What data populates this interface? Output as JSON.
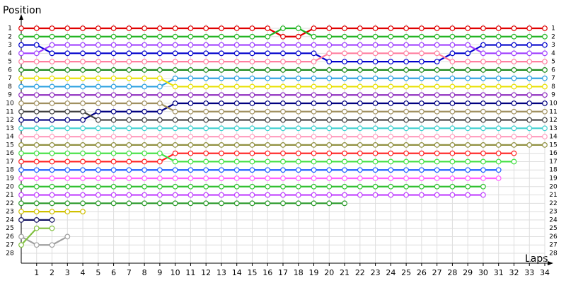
{
  "chart_data": {
    "type": "line",
    "title": "Position",
    "x_label": "Laps",
    "x": [
      0,
      1,
      2,
      3,
      4,
      5,
      6,
      7,
      8,
      9,
      10,
      11,
      12,
      13,
      14,
      15,
      16,
      17,
      18,
      19,
      20,
      21,
      22,
      23,
      24,
      25,
      26,
      27,
      28,
      29,
      30,
      31,
      32,
      33,
      34
    ],
    "xlim": [
      0,
      34
    ],
    "xticks": [
      1,
      2,
      3,
      4,
      5,
      6,
      7,
      8,
      9,
      10,
      11,
      12,
      13,
      14,
      15,
      16,
      17,
      18,
      19,
      20,
      21,
      22,
      23,
      24,
      25,
      26,
      27,
      28,
      29,
      30,
      31,
      32,
      33,
      34
    ],
    "ylim": [
      1,
      28
    ],
    "yticks": [
      1,
      2,
      3,
      4,
      5,
      6,
      7,
      8,
      9,
      10,
      11,
      12,
      13,
      14,
      15,
      16,
      17,
      18,
      19,
      20,
      21,
      22,
      23,
      24,
      25,
      26,
      27,
      28
    ],
    "y_reversed": true,
    "grid": true,
    "series": [
      {
        "color": "#e00000",
        "values": [
          1,
          1,
          1,
          1,
          1,
          1,
          1,
          1,
          1,
          1,
          1,
          1,
          1,
          1,
          1,
          1,
          1,
          2,
          2,
          1,
          1,
          1,
          1,
          1,
          1,
          1,
          1,
          1,
          1,
          1,
          1,
          1,
          1,
          1,
          1
        ]
      },
      {
        "color": "#22b422",
        "values": [
          2,
          2,
          2,
          2,
          2,
          2,
          2,
          2,
          2,
          2,
          2,
          2,
          2,
          2,
          2,
          2,
          2,
          1,
          1,
          2,
          2,
          2,
          2,
          2,
          2,
          2,
          2,
          2,
          2,
          2,
          2,
          2,
          2,
          2,
          2
        ]
      },
      {
        "color": "#0000cc",
        "values": [
          3,
          3,
          4,
          4,
          4,
          4,
          4,
          4,
          4,
          4,
          4,
          4,
          4,
          4,
          4,
          4,
          4,
          4,
          4,
          4,
          5,
          5,
          5,
          5,
          5,
          5,
          5,
          5,
          4,
          4,
          3,
          3,
          3,
          3,
          3
        ]
      },
      {
        "color": "#a040ff",
        "values": [
          4,
          4,
          3,
          3,
          3,
          3,
          3,
          3,
          3,
          3,
          3,
          3,
          3,
          3,
          3,
          3,
          3,
          3,
          3,
          3,
          3,
          3,
          3,
          3,
          3,
          3,
          3,
          3,
          3,
          3,
          4,
          4,
          4,
          4,
          4
        ]
      },
      {
        "color": "#ff80a0",
        "values": [
          5,
          5,
          5,
          5,
          5,
          5,
          5,
          5,
          5,
          5,
          5,
          5,
          5,
          5,
          5,
          5,
          5,
          5,
          5,
          5,
          4,
          4,
          4,
          4,
          4,
          4,
          4,
          4,
          5,
          5,
          5,
          5,
          5,
          5,
          5
        ]
      },
      {
        "color": "#1a8a1a",
        "values": [
          6,
          6,
          6,
          6,
          6,
          6,
          6,
          6,
          6,
          6,
          6,
          6,
          6,
          6,
          6,
          6,
          6,
          6,
          6,
          6,
          6,
          6,
          6,
          6,
          6,
          6,
          6,
          6,
          6,
          6,
          6,
          6,
          6,
          6,
          6
        ]
      },
      {
        "color": "#2aa0e0",
        "values": [
          8,
          8,
          8,
          8,
          8,
          8,
          8,
          8,
          8,
          8,
          7,
          7,
          7,
          7,
          7,
          7,
          7,
          7,
          7,
          7,
          7,
          7,
          7,
          7,
          7,
          7,
          7,
          7,
          7,
          7,
          7,
          7,
          7,
          7,
          7
        ]
      },
      {
        "color": "#e8e000",
        "values": [
          7,
          7,
          7,
          7,
          7,
          7,
          7,
          7,
          7,
          7,
          8,
          8,
          8,
          8,
          8,
          8,
          8,
          8,
          8,
          8,
          8,
          8,
          8,
          8,
          8,
          8,
          8,
          8,
          8,
          8,
          8,
          8,
          8,
          8,
          8
        ]
      },
      {
        "color": "#9030c0",
        "values": [
          9,
          9,
          9,
          9,
          9,
          9,
          9,
          9,
          9,
          9,
          9,
          9,
          9,
          9,
          9,
          9,
          9,
          9,
          9,
          9,
          9,
          9,
          9,
          9,
          9,
          9,
          9,
          9,
          9,
          9,
          9,
          9,
          9,
          9,
          9
        ]
      },
      {
        "color": "#000080",
        "values": [
          12,
          12,
          12,
          12,
          12,
          11,
          11,
          11,
          11,
          11,
          10,
          10,
          10,
          10,
          10,
          10,
          10,
          10,
          10,
          10,
          10,
          10,
          10,
          10,
          10,
          10,
          10,
          10,
          10,
          10,
          10,
          10,
          10,
          10,
          10
        ]
      },
      {
        "color": "#a09060",
        "values": [
          10,
          10,
          10,
          10,
          10,
          10,
          10,
          10,
          10,
          10,
          11,
          11,
          11,
          11,
          11,
          11,
          11,
          11,
          11,
          11,
          11,
          11,
          11,
          11,
          11,
          11,
          11,
          11,
          11,
          11,
          11,
          11,
          11,
          11,
          11
        ]
      },
      {
        "color": "#404040",
        "values": [
          11,
          11,
          11,
          11,
          11,
          12,
          12,
          12,
          12,
          12,
          12,
          12,
          12,
          12,
          12,
          12,
          12,
          12,
          12,
          12,
          12,
          12,
          12,
          12,
          12,
          12,
          12,
          12,
          12,
          12,
          12,
          12,
          12,
          12,
          12
        ]
      },
      {
        "color": "#40d0d0",
        "values": [
          13,
          13,
          13,
          13,
          13,
          13,
          13,
          13,
          13,
          13,
          13,
          13,
          13,
          13,
          13,
          13,
          13,
          13,
          13,
          13,
          13,
          13,
          13,
          13,
          13,
          13,
          13,
          13,
          13,
          13,
          13,
          13,
          13,
          13,
          13
        ]
      },
      {
        "color": "#ffa0c0",
        "values": [
          14,
          14,
          14,
          14,
          14,
          14,
          14,
          14,
          14,
          14,
          14,
          14,
          14,
          14,
          14,
          14,
          14,
          14,
          14,
          14,
          14,
          14,
          14,
          14,
          14,
          14,
          14,
          14,
          14,
          14,
          14,
          14,
          14,
          14,
          14
        ]
      },
      {
        "color": "#909040",
        "values": [
          15,
          15,
          15,
          15,
          15,
          15,
          15,
          15,
          15,
          15,
          15,
          15,
          15,
          15,
          15,
          15,
          15,
          15,
          15,
          15,
          15,
          15,
          15,
          15,
          15,
          15,
          15,
          15,
          15,
          15,
          15,
          15,
          15,
          15,
          15
        ]
      },
      {
        "color": "#ff2020",
        "values": [
          17,
          17,
          17,
          17,
          17,
          17,
          17,
          17,
          17,
          17,
          16,
          16,
          16,
          16,
          16,
          16,
          16,
          16,
          16,
          16,
          16,
          16,
          16,
          16,
          16,
          16,
          16,
          16,
          16,
          16,
          16,
          16,
          16,
          null,
          null
        ]
      },
      {
        "color": "#40e040",
        "values": [
          16,
          16,
          16,
          16,
          16,
          16,
          16,
          16,
          16,
          16,
          17,
          17,
          17,
          17,
          17,
          17,
          17,
          17,
          17,
          17,
          17,
          17,
          17,
          17,
          17,
          17,
          17,
          17,
          17,
          17,
          17,
          17,
          17,
          null,
          null
        ]
      },
      {
        "color": "#2060ff",
        "values": [
          18,
          18,
          18,
          18,
          18,
          18,
          18,
          18,
          18,
          18,
          18,
          18,
          18,
          18,
          18,
          18,
          18,
          18,
          18,
          18,
          18,
          18,
          18,
          18,
          18,
          18,
          18,
          18,
          18,
          18,
          18,
          18,
          null,
          null,
          null
        ]
      },
      {
        "color": "#ff60ff",
        "values": [
          19,
          19,
          19,
          19,
          19,
          19,
          19,
          19,
          19,
          19,
          19,
          19,
          19,
          19,
          19,
          19,
          19,
          19,
          19,
          19,
          19,
          19,
          19,
          19,
          19,
          19,
          19,
          19,
          19,
          19,
          19,
          19,
          null,
          null,
          null
        ]
      },
      {
        "color": "#30c030",
        "values": [
          20,
          20,
          20,
          20,
          20,
          20,
          20,
          20,
          20,
          20,
          20,
          20,
          20,
          20,
          20,
          20,
          20,
          20,
          20,
          20,
          20,
          20,
          20,
          20,
          20,
          20,
          20,
          20,
          20,
          20,
          20,
          null,
          null,
          null,
          null
        ]
      },
      {
        "color": "#c040ff",
        "values": [
          21,
          21,
          21,
          21,
          21,
          21,
          21,
          21,
          21,
          21,
          21,
          21,
          21,
          21,
          21,
          21,
          21,
          21,
          21,
          21,
          21,
          21,
          21,
          21,
          21,
          21,
          21,
          21,
          21,
          21,
          21,
          null,
          null,
          null,
          null
        ]
      },
      {
        "color": "#2a9a2a",
        "values": [
          22,
          22,
          22,
          22,
          22,
          22,
          22,
          22,
          22,
          22,
          22,
          22,
          22,
          22,
          22,
          22,
          22,
          22,
          22,
          22,
          22,
          22,
          null,
          null,
          null,
          null,
          null,
          null,
          null,
          null,
          null,
          null,
          null,
          null,
          null
        ]
      },
      {
        "color": "#d0c000",
        "values": [
          23,
          23,
          23,
          23,
          23,
          null,
          null,
          null,
          null,
          null,
          null,
          null,
          null,
          null,
          null,
          null,
          null,
          null,
          null,
          null,
          null,
          null,
          null,
          null,
          null,
          null,
          null,
          null,
          null,
          null,
          null,
          null,
          null,
          null,
          null
        ]
      },
      {
        "color": "#101060",
        "values": [
          24,
          24,
          24,
          null,
          null,
          null,
          null,
          null,
          null,
          null,
          null,
          null,
          null,
          null,
          null,
          null,
          null,
          null,
          null,
          null,
          null,
          null,
          null,
          null,
          null,
          null,
          null,
          null,
          null,
          null,
          null,
          null,
          null,
          null,
          null
        ]
      },
      {
        "color": "#a0a0a0",
        "values": [
          26,
          27,
          27,
          26,
          null,
          null,
          null,
          null,
          null,
          null,
          null,
          null,
          null,
          null,
          null,
          null,
          null,
          null,
          null,
          null,
          null,
          null,
          null,
          null,
          null,
          null,
          null,
          null,
          null,
          null,
          null,
          null,
          null,
          null,
          null
        ]
      },
      {
        "color": "#80c040",
        "values": [
          27,
          25,
          25,
          null,
          null,
          null,
          null,
          null,
          null,
          null,
          null,
          null,
          null,
          null,
          null,
          null,
          null,
          null,
          null,
          null,
          null,
          null,
          null,
          null,
          null,
          null,
          null,
          null,
          null,
          null,
          null,
          null,
          null,
          null,
          null
        ]
      }
    ]
  }
}
